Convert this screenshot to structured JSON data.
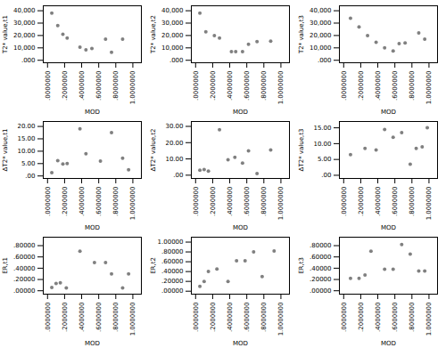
{
  "chart_data": [
    {
      "type": "scatter",
      "xlabel": "MOD",
      "ylabel": "T2* value,t1",
      "color": "#808080",
      "xlim": [
        -0.05,
        1.1
      ],
      "ylim": [
        -2000,
        44000
      ],
      "xticks": [
        {
          "value": 0.0,
          "label": ".0000000"
        },
        {
          "value": 0.2,
          "label": ".2000000"
        },
        {
          "value": 0.4,
          "label": ".4000000"
        },
        {
          "value": 0.6,
          "label": ".6000000"
        },
        {
          "value": 0.8,
          "label": ".8000000"
        },
        {
          "value": 1.0,
          "label": "1.0000000"
        }
      ],
      "yticks": [
        {
          "value": 0,
          "label": ".000"
        },
        {
          "value": 10000,
          "label": "10,000"
        },
        {
          "value": 20000,
          "label": "20,000"
        },
        {
          "value": 30000,
          "label": "30,000"
        },
        {
          "value": 40000,
          "label": "40,000"
        }
      ],
      "x": [
        0.05,
        0.12,
        0.18,
        0.23,
        0.38,
        0.45,
        0.52,
        0.68,
        0.75,
        0.88
      ],
      "values": [
        38000,
        28000,
        21000,
        18000,
        10500,
        8500,
        9500,
        17000,
        6500,
        17000
      ]
    },
    {
      "type": "scatter",
      "xlabel": "MOD",
      "ylabel": "T2* value,t2",
      "color": "#808080",
      "xlim": [
        -0.05,
        1.1
      ],
      "ylim": [
        -2000,
        44000
      ],
      "xticks": [
        {
          "value": 0.0,
          "label": ".0000000"
        },
        {
          "value": 0.2,
          "label": ".2000000"
        },
        {
          "value": 0.4,
          "label": ".4000000"
        },
        {
          "value": 0.6,
          "label": ".6000000"
        },
        {
          "value": 0.8,
          "label": ".8000000"
        },
        {
          "value": 1.0,
          "label": "1.0000000"
        }
      ],
      "yticks": [
        {
          "value": 0,
          "label": ".000"
        },
        {
          "value": 10000,
          "label": "10,000"
        },
        {
          "value": 20000,
          "label": "20,000"
        },
        {
          "value": 30000,
          "label": "30,000"
        },
        {
          "value": 40000,
          "label": "40,000"
        }
      ],
      "x": [
        0.05,
        0.12,
        0.22,
        0.28,
        0.42,
        0.47,
        0.55,
        0.62,
        0.72,
        0.88
      ],
      "values": [
        38000,
        23000,
        20000,
        18000,
        7000,
        7000,
        7000,
        13000,
        15000,
        15500
      ]
    },
    {
      "type": "scatter",
      "xlabel": "MOD",
      "ylabel": "T2* value,t3",
      "color": "#808080",
      "xlim": [
        -0.05,
        1.1
      ],
      "ylim": [
        -2000,
        44000
      ],
      "xticks": [
        {
          "value": 0.0,
          "label": ".0000000"
        },
        {
          "value": 0.2,
          "label": ".2000000"
        },
        {
          "value": 0.4,
          "label": ".4000000"
        },
        {
          "value": 0.6,
          "label": ".6000000"
        },
        {
          "value": 0.8,
          "label": ".8000000"
        },
        {
          "value": 1.0,
          "label": "1.0000000"
        }
      ],
      "yticks": [
        {
          "value": 0,
          "label": ".000"
        },
        {
          "value": 10000,
          "label": "10,000"
        },
        {
          "value": 20000,
          "label": "20,000"
        },
        {
          "value": 30000,
          "label": "30,000"
        },
        {
          "value": 40000,
          "label": "40,000"
        }
      ],
      "x": [
        0.08,
        0.18,
        0.28,
        0.38,
        0.48,
        0.58,
        0.65,
        0.72,
        0.88,
        0.95
      ],
      "values": [
        34000,
        27000,
        20000,
        14500,
        10000,
        7500,
        13500,
        14000,
        22000,
        17000
      ]
    },
    {
      "type": "scatter",
      "xlabel": "MOD",
      "ylabel": "ΔT2* value,t1",
      "color": "#808080",
      "xlim": [
        -0.05,
        1.1
      ],
      "ylim": [
        -1,
        22
      ],
      "xticks": [
        {
          "value": 0.0,
          "label": ".0000000"
        },
        {
          "value": 0.2,
          "label": ".2000000"
        },
        {
          "value": 0.4,
          "label": ".4000000"
        },
        {
          "value": 0.6,
          "label": ".6000000"
        },
        {
          "value": 0.8,
          "label": ".8000000"
        },
        {
          "value": 1.0,
          "label": "1.0000000"
        }
      ],
      "yticks": [
        {
          "value": 0.0,
          "label": ".00"
        },
        {
          "value": 5.0,
          "label": "5.00"
        },
        {
          "value": 10.0,
          "label": "10.00"
        },
        {
          "value": 15.0,
          "label": "15.00"
        },
        {
          "value": 20.0,
          "label": "20.00"
        }
      ],
      "x": [
        0.05,
        0.12,
        0.18,
        0.23,
        0.38,
        0.45,
        0.62,
        0.75,
        0.88,
        0.95
      ],
      "values": [
        1.3,
        6.2,
        4.8,
        5.0,
        19.0,
        9.0,
        6.0,
        17.5,
        7.2,
        2.5
      ]
    },
    {
      "type": "scatter",
      "xlabel": "MOD",
      "ylabel": "ΔT2* value,t2",
      "color": "#808080",
      "xlim": [
        -0.05,
        1.1
      ],
      "ylim": [
        -2,
        33
      ],
      "xticks": [
        {
          "value": 0.0,
          "label": ".0000000"
        },
        {
          "value": 0.2,
          "label": ".2000000"
        },
        {
          "value": 0.4,
          "label": ".4000000"
        },
        {
          "value": 0.6,
          "label": ".6000000"
        },
        {
          "value": 0.8,
          "label": ".8000000"
        },
        {
          "value": 1.0,
          "label": "1.0000000"
        }
      ],
      "yticks": [
        {
          "value": 0.0,
          "label": ".00"
        },
        {
          "value": 10.0,
          "label": "10.00"
        },
        {
          "value": 20.0,
          "label": "20.00"
        },
        {
          "value": 30.0,
          "label": "30.00"
        }
      ],
      "x": [
        0.05,
        0.1,
        0.15,
        0.28,
        0.38,
        0.46,
        0.55,
        0.62,
        0.72,
        0.88
      ],
      "values": [
        3.0,
        3.5,
        2.5,
        28.0,
        9.5,
        11.0,
        7.5,
        15.0,
        1.0,
        15.5
      ]
    },
    {
      "type": "scatter",
      "xlabel": "MOD",
      "ylabel": "ΔT2* value,t3",
      "color": "#808080",
      "xlim": [
        -0.05,
        1.1
      ],
      "ylim": [
        -1,
        17
      ],
      "xticks": [
        {
          "value": 0.0,
          "label": ".0000000"
        },
        {
          "value": 0.2,
          "label": ".2000000"
        },
        {
          "value": 0.4,
          "label": ".4000000"
        },
        {
          "value": 0.6,
          "label": ".6000000"
        },
        {
          "value": 0.8,
          "label": ".8000000"
        },
        {
          "value": 1.0,
          "label": "1.0000000"
        }
      ],
      "yticks": [
        {
          "value": 0.0,
          "label": ".00"
        },
        {
          "value": 5.0,
          "label": "5.00"
        },
        {
          "value": 10.0,
          "label": "10.00"
        },
        {
          "value": 15.0,
          "label": "15.00"
        }
      ],
      "x": [
        0.08,
        0.25,
        0.38,
        0.48,
        0.58,
        0.68,
        0.78,
        0.85,
        0.92,
        0.98
      ],
      "values": [
        6.5,
        8.5,
        8.0,
        14.5,
        12.0,
        13.5,
        3.5,
        8.5,
        9.0,
        15.0
      ]
    },
    {
      "type": "scatter",
      "xlabel": "MOD",
      "ylabel": "ER,t1",
      "color": "#808080",
      "xlim": [
        -0.05,
        1.1
      ],
      "ylim": [
        -0.06,
        0.95
      ],
      "xticks": [
        {
          "value": 0.0,
          "label": ".0000000"
        },
        {
          "value": 0.2,
          "label": ".2000000"
        },
        {
          "value": 0.4,
          "label": ".4000000"
        },
        {
          "value": 0.6,
          "label": ".6000000"
        },
        {
          "value": 0.8,
          "label": ".8000000"
        },
        {
          "value": 1.0,
          "label": "1.0000000"
        }
      ],
      "yticks": [
        {
          "value": 0.0,
          "label": ".00000"
        },
        {
          "value": 0.2,
          "label": ".20000"
        },
        {
          "value": 0.4,
          "label": ".40000"
        },
        {
          "value": 0.6,
          "label": ".60000"
        },
        {
          "value": 0.8,
          "label": ".80000"
        }
      ],
      "x": [
        0.05,
        0.1,
        0.15,
        0.22,
        0.38,
        0.55,
        0.68,
        0.75,
        0.88,
        0.95
      ],
      "values": [
        0.06,
        0.13,
        0.14,
        0.05,
        0.7,
        0.5,
        0.5,
        0.3,
        0.05,
        0.3
      ]
    },
    {
      "type": "scatter",
      "xlabel": "MOD",
      "ylabel": "ER,t2",
      "color": "#808080",
      "xlim": [
        -0.05,
        1.1
      ],
      "ylim": [
        -0.06,
        1.1
      ],
      "xticks": [
        {
          "value": 0.0,
          "label": ".0000000"
        },
        {
          "value": 0.2,
          "label": ".2000000"
        },
        {
          "value": 0.4,
          "label": ".4000000"
        },
        {
          "value": 0.6,
          "label": ".6000000"
        },
        {
          "value": 0.8,
          "label": ".8000000"
        },
        {
          "value": 1.0,
          "label": "1.0000000"
        }
      ],
      "yticks": [
        {
          "value": 0.0,
          "label": ".00000"
        },
        {
          "value": 0.2,
          "label": ".20000"
        },
        {
          "value": 0.4,
          "label": ".40000"
        },
        {
          "value": 0.6,
          "label": ".60000"
        },
        {
          "value": 0.8,
          "label": ".80000"
        },
        {
          "value": 1.0,
          "label": "1.00000"
        }
      ],
      "x": [
        0.05,
        0.1,
        0.15,
        0.25,
        0.38,
        0.48,
        0.58,
        0.68,
        0.78,
        0.92
      ],
      "values": [
        0.1,
        0.2,
        0.4,
        0.45,
        0.2,
        0.62,
        0.62,
        0.8,
        0.3,
        0.82
      ]
    },
    {
      "type": "scatter",
      "xlabel": "MOD",
      "ylabel": "ER,t3",
      "color": "#808080",
      "xlim": [
        -0.05,
        1.1
      ],
      "ylim": [
        -0.06,
        0.95
      ],
      "xticks": [
        {
          "value": 0.0,
          "label": ".0000000"
        },
        {
          "value": 0.2,
          "label": ".2000000"
        },
        {
          "value": 0.4,
          "label": ".4000000"
        },
        {
          "value": 0.6,
          "label": ".6000000"
        },
        {
          "value": 0.8,
          "label": ".8000000"
        },
        {
          "value": 1.0,
          "label": "1.0000000"
        }
      ],
      "yticks": [
        {
          "value": 0.0,
          "label": ".00000"
        },
        {
          "value": 0.2,
          "label": ".20000"
        },
        {
          "value": 0.4,
          "label": ".40000"
        },
        {
          "value": 0.6,
          "label": ".60000"
        },
        {
          "value": 0.8,
          "label": ".80000"
        }
      ],
      "x": [
        0.08,
        0.18,
        0.25,
        0.32,
        0.48,
        0.58,
        0.68,
        0.78,
        0.88,
        0.95
      ],
      "values": [
        0.22,
        0.22,
        0.28,
        0.7,
        0.38,
        0.38,
        0.82,
        0.65,
        0.35,
        0.35
      ]
    }
  ]
}
